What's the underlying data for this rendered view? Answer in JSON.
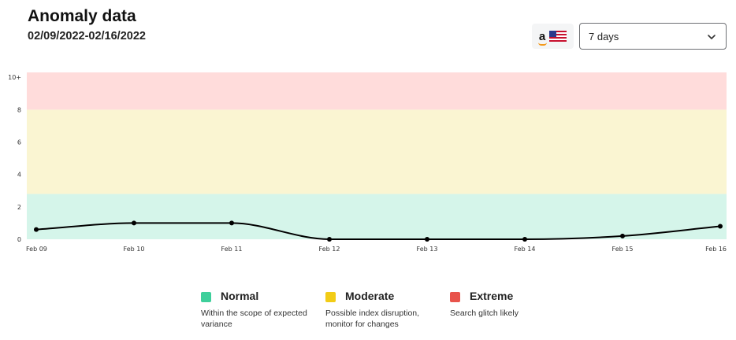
{
  "header": {
    "title": "Anomaly data",
    "date_range": "02/09/2022-02/16/2022"
  },
  "marketplace": {
    "brand_letter": "a",
    "brand_icon": "amazon-icon",
    "flag_icon": "us-flag-icon"
  },
  "range_select": {
    "value": "7 days",
    "icon": "chevron-down-icon"
  },
  "chart_data": {
    "type": "line",
    "x": [
      "Feb 09",
      "Feb 10",
      "Feb 11",
      "Feb 12",
      "Feb 13",
      "Feb 14",
      "Feb 15",
      "Feb 16"
    ],
    "series": [
      {
        "values": [
          0.6,
          1.0,
          1.0,
          0.0,
          0.0,
          0.0,
          0.2,
          0.8
        ],
        "color": "#000000"
      }
    ],
    "yticks": [
      "0",
      "2",
      "4",
      "6",
      "8",
      "10+"
    ],
    "ylim": [
      0,
      10
    ],
    "xlabel": "",
    "ylabel": "",
    "grid": false,
    "bands": [
      {
        "from": 0,
        "to": 2.8,
        "color": "#d5f5ea"
      },
      {
        "from": 2.8,
        "to": 8,
        "color": "#faf5d2"
      },
      {
        "from": 8,
        "to": 10.3,
        "color": "#ffdcdb"
      }
    ]
  },
  "legend": [
    {
      "name": "Normal",
      "description": "Within the scope of expected variance",
      "color": "#3ecf9b"
    },
    {
      "name": "Moderate",
      "description": "Possible index disruption, monitor for changes",
      "color": "#f2cc16"
    },
    {
      "name": "Extreme",
      "description": "Search glitch likely",
      "color": "#e8534b"
    }
  ]
}
